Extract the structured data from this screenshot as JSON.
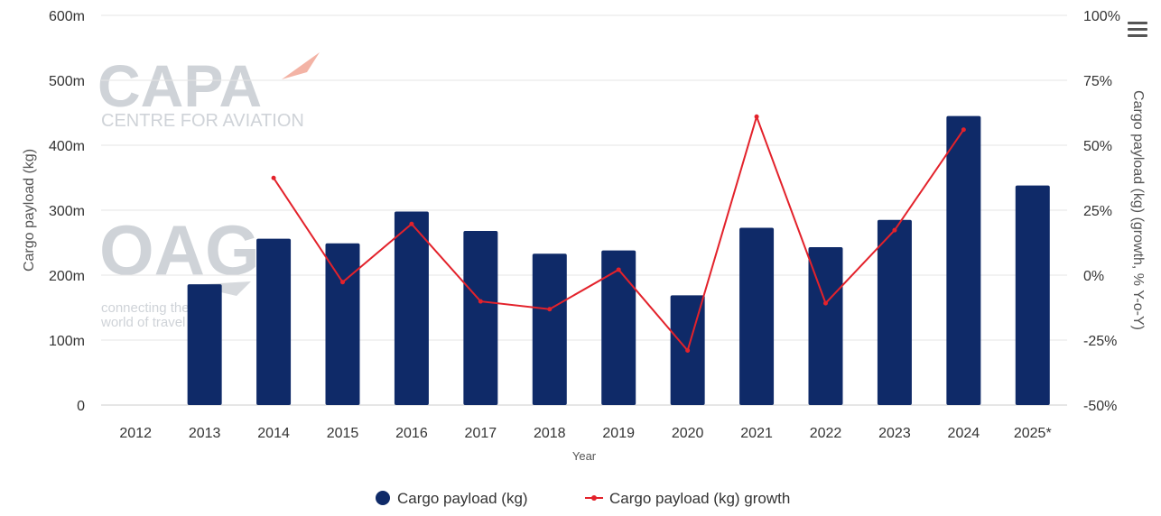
{
  "chart_data": {
    "type": "bar+line",
    "categories": [
      "2012",
      "2013",
      "2014",
      "2015",
      "2016",
      "2017",
      "2018",
      "2019",
      "2020",
      "2021",
      "2022",
      "2023",
      "2024",
      "2025*"
    ],
    "series": [
      {
        "name": "Cargo payload (kg)",
        "type": "bar",
        "axis": "left",
        "values": [
          0,
          186000000,
          256000000,
          249000000,
          298000000,
          268000000,
          233000000,
          238000000,
          169000000,
          273000000,
          243000000,
          285000000,
          445000000,
          338000000
        ]
      },
      {
        "name": "Cargo payload (kg) growth",
        "type": "line",
        "axis": "right",
        "values": [
          null,
          null,
          37.4,
          -2.7,
          19.7,
          -10.1,
          -13.1,
          2.1,
          -29.0,
          61.0,
          -10.8,
          17.3,
          56.0,
          null
        ]
      }
    ],
    "xlabel": "Year",
    "ylabel": "Cargo payload (kg)",
    "y2label": "Cargo payload (kg) (growth, % Y-o-Y)",
    "ylim": [
      0,
      600000000
    ],
    "y2lim": [
      -50,
      100
    ],
    "yticks": [
      "0",
      "100m",
      "200m",
      "300m",
      "400m",
      "500m",
      "600m"
    ],
    "y2ticks": [
      "-50%",
      "-25%",
      "0%",
      "25%",
      "50%",
      "75%",
      "100%"
    ],
    "grid": true,
    "legend_position": "bottom-center"
  },
  "colors": {
    "bar": "#0f2a68",
    "line": "#e3222b",
    "grid": "#e6e6e6"
  },
  "watermark": {
    "capa_logo": "CAPA",
    "capa_tagline": "CENTRE FOR AVIATION",
    "oag_logo": "OAG",
    "oag_tagline": "connecting the world of travel"
  },
  "menu_icon": "hamburger-menu-icon"
}
